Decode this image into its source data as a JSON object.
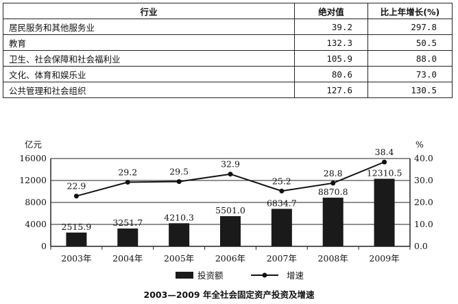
{
  "table": {
    "headers": [
      "行业",
      "绝对值",
      "比上年增长(%)"
    ],
    "rows": [
      {
        "name": "居民服务和其他服务业",
        "abs": "39.2",
        "growth": "297.8"
      },
      {
        "name": "教育",
        "abs": "132.3",
        "growth": "50.5"
      },
      {
        "name": "卫生、社会保障和社会福利业",
        "abs": "105.9",
        "growth": "88.0"
      },
      {
        "name": "文化、体育和娱乐业",
        "abs": "80.6",
        "growth": "73.0"
      },
      {
        "name": "公共管理和社会组织",
        "abs": "127.6",
        "growth": "130.5"
      }
    ]
  },
  "chart_data": {
    "type": "bar",
    "title": "2003—2009 年全社会固定资产投资及增速",
    "categories": [
      "2003年",
      "2004年",
      "2005年",
      "2006年",
      "2007年",
      "2008年",
      "2009年"
    ],
    "left_unit": "亿元",
    "right_unit": "%",
    "left_ticks": [
      "0",
      "4000",
      "8000",
      "12000",
      "16000"
    ],
    "right_ticks": [
      "0.0",
      "10.0",
      "20.0",
      "30.0",
      "40.0"
    ],
    "ylim_left": [
      0,
      16000
    ],
    "ylim_right": [
      0,
      40
    ],
    "series": [
      {
        "name": "投资额",
        "kind": "bar",
        "values": [
          2515.9,
          3251.7,
          4210.3,
          5501.0,
          6834.7,
          8870.8,
          12310.5
        ],
        "labels": [
          "2515.9",
          "3251.7",
          "4210.3",
          "5501.0",
          "6834.7",
          "8870.8",
          "12310.5"
        ]
      },
      {
        "name": "增速",
        "kind": "line",
        "values": [
          22.9,
          29.2,
          29.5,
          32.9,
          25.2,
          28.8,
          38.4
        ],
        "labels": [
          "22.9",
          "29.2",
          "29.5",
          "32.9",
          "25.2",
          "28.8",
          "38.4"
        ]
      }
    ],
    "legend": [
      "投资额",
      "增速"
    ],
    "legend_position": "bottom",
    "grid": true
  }
}
